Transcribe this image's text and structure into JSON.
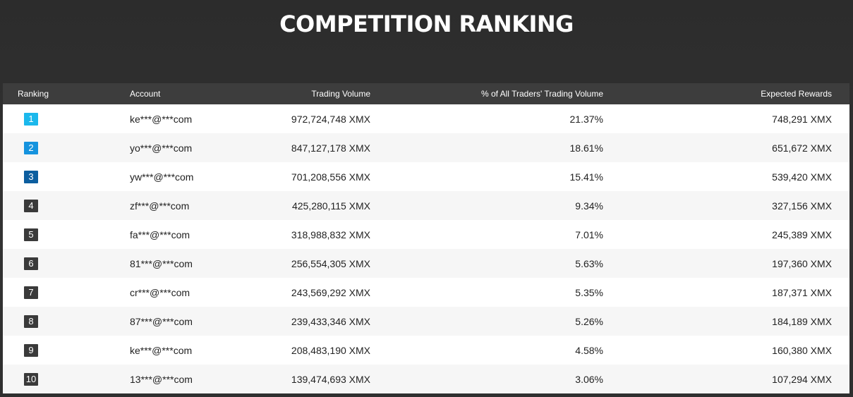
{
  "title": "COMPETITION RANKING",
  "columns": {
    "ranking": "Ranking",
    "account": "Account",
    "volume": "Trading Volume",
    "percent": "% of All Traders' Trading Volume",
    "rewards": "Expected Rewards"
  },
  "badge_colors": {
    "1": "#1bb8ec",
    "2": "#1593de",
    "3": "#0c5e9f",
    "default": "#3a3a3a"
  },
  "rows": [
    {
      "rank": "1",
      "account": "ke***@***com",
      "volume": "972,724,748 XMX",
      "percent": "21.37%",
      "reward": "748,291 XMX"
    },
    {
      "rank": "2",
      "account": "yo***@***com",
      "volume": "847,127,178 XMX",
      "percent": "18.61%",
      "reward": "651,672 XMX"
    },
    {
      "rank": "3",
      "account": "yw***@***com",
      "volume": "701,208,556 XMX",
      "percent": "15.41%",
      "reward": "539,420 XMX"
    },
    {
      "rank": "4",
      "account": "zf***@***com",
      "volume": "425,280,115 XMX",
      "percent": "9.34%",
      "reward": "327,156 XMX"
    },
    {
      "rank": "5",
      "account": "fa***@***com",
      "volume": "318,988,832 XMX",
      "percent": "7.01%",
      "reward": "245,389 XMX"
    },
    {
      "rank": "6",
      "account": "81***@***com",
      "volume": "256,554,305 XMX",
      "percent": "5.63%",
      "reward": "197,360 XMX"
    },
    {
      "rank": "7",
      "account": "cr***@***com",
      "volume": "243,569,292 XMX",
      "percent": "5.35%",
      "reward": "187,371 XMX"
    },
    {
      "rank": "8",
      "account": "87***@***com",
      "volume": "239,433,346 XMX",
      "percent": "5.26%",
      "reward": "184,189 XMX"
    },
    {
      "rank": "9",
      "account": "ke***@***com",
      "volume": "208,483,190 XMX",
      "percent": "4.58%",
      "reward": "160,380 XMX"
    },
    {
      "rank": "10",
      "account": "13***@***com",
      "volume": "139,474,693 XMX",
      "percent": "3.06%",
      "reward": "107,294 XMX"
    }
  ]
}
